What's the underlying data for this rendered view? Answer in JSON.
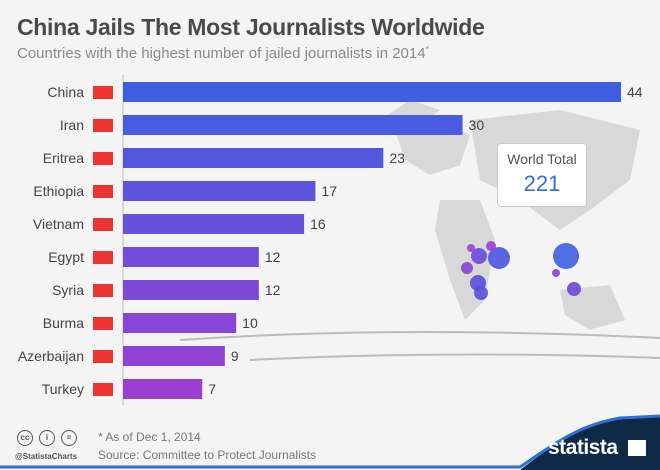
{
  "header": {
    "title": "China Jails The Most Journalists Worldwide",
    "subtitle": "Countries with the highest number of jailed journalists in 2014",
    "subtitle_mark": "*"
  },
  "world_total": {
    "label": "World Total",
    "value": "221"
  },
  "footer": {
    "note": "* As of Dec 1, 2014",
    "source": "Source: Committee to Protect Journalists",
    "handle": "@StatistaCharts",
    "license_icons": [
      "cc-icon",
      "by-icon",
      "nd-icon"
    ],
    "brand": "statista"
  },
  "colors": {
    "bar_start": "#3f5ee2",
    "bar_end": "#9a3fd2",
    "total": "#2f6fd6",
    "brand_bg": "#0e2a47"
  },
  "chart_data": {
    "type": "bar",
    "orientation": "horizontal",
    "categories": [
      "China",
      "Iran",
      "Eritrea",
      "Ethiopia",
      "Vietnam",
      "Egypt",
      "Syria",
      "Burma",
      "Azerbaijan",
      "Turkey"
    ],
    "values": [
      44,
      30,
      23,
      17,
      16,
      12,
      12,
      10,
      9,
      7
    ],
    "data_labels": true,
    "xlim": [
      0,
      44
    ],
    "grid": false
  }
}
